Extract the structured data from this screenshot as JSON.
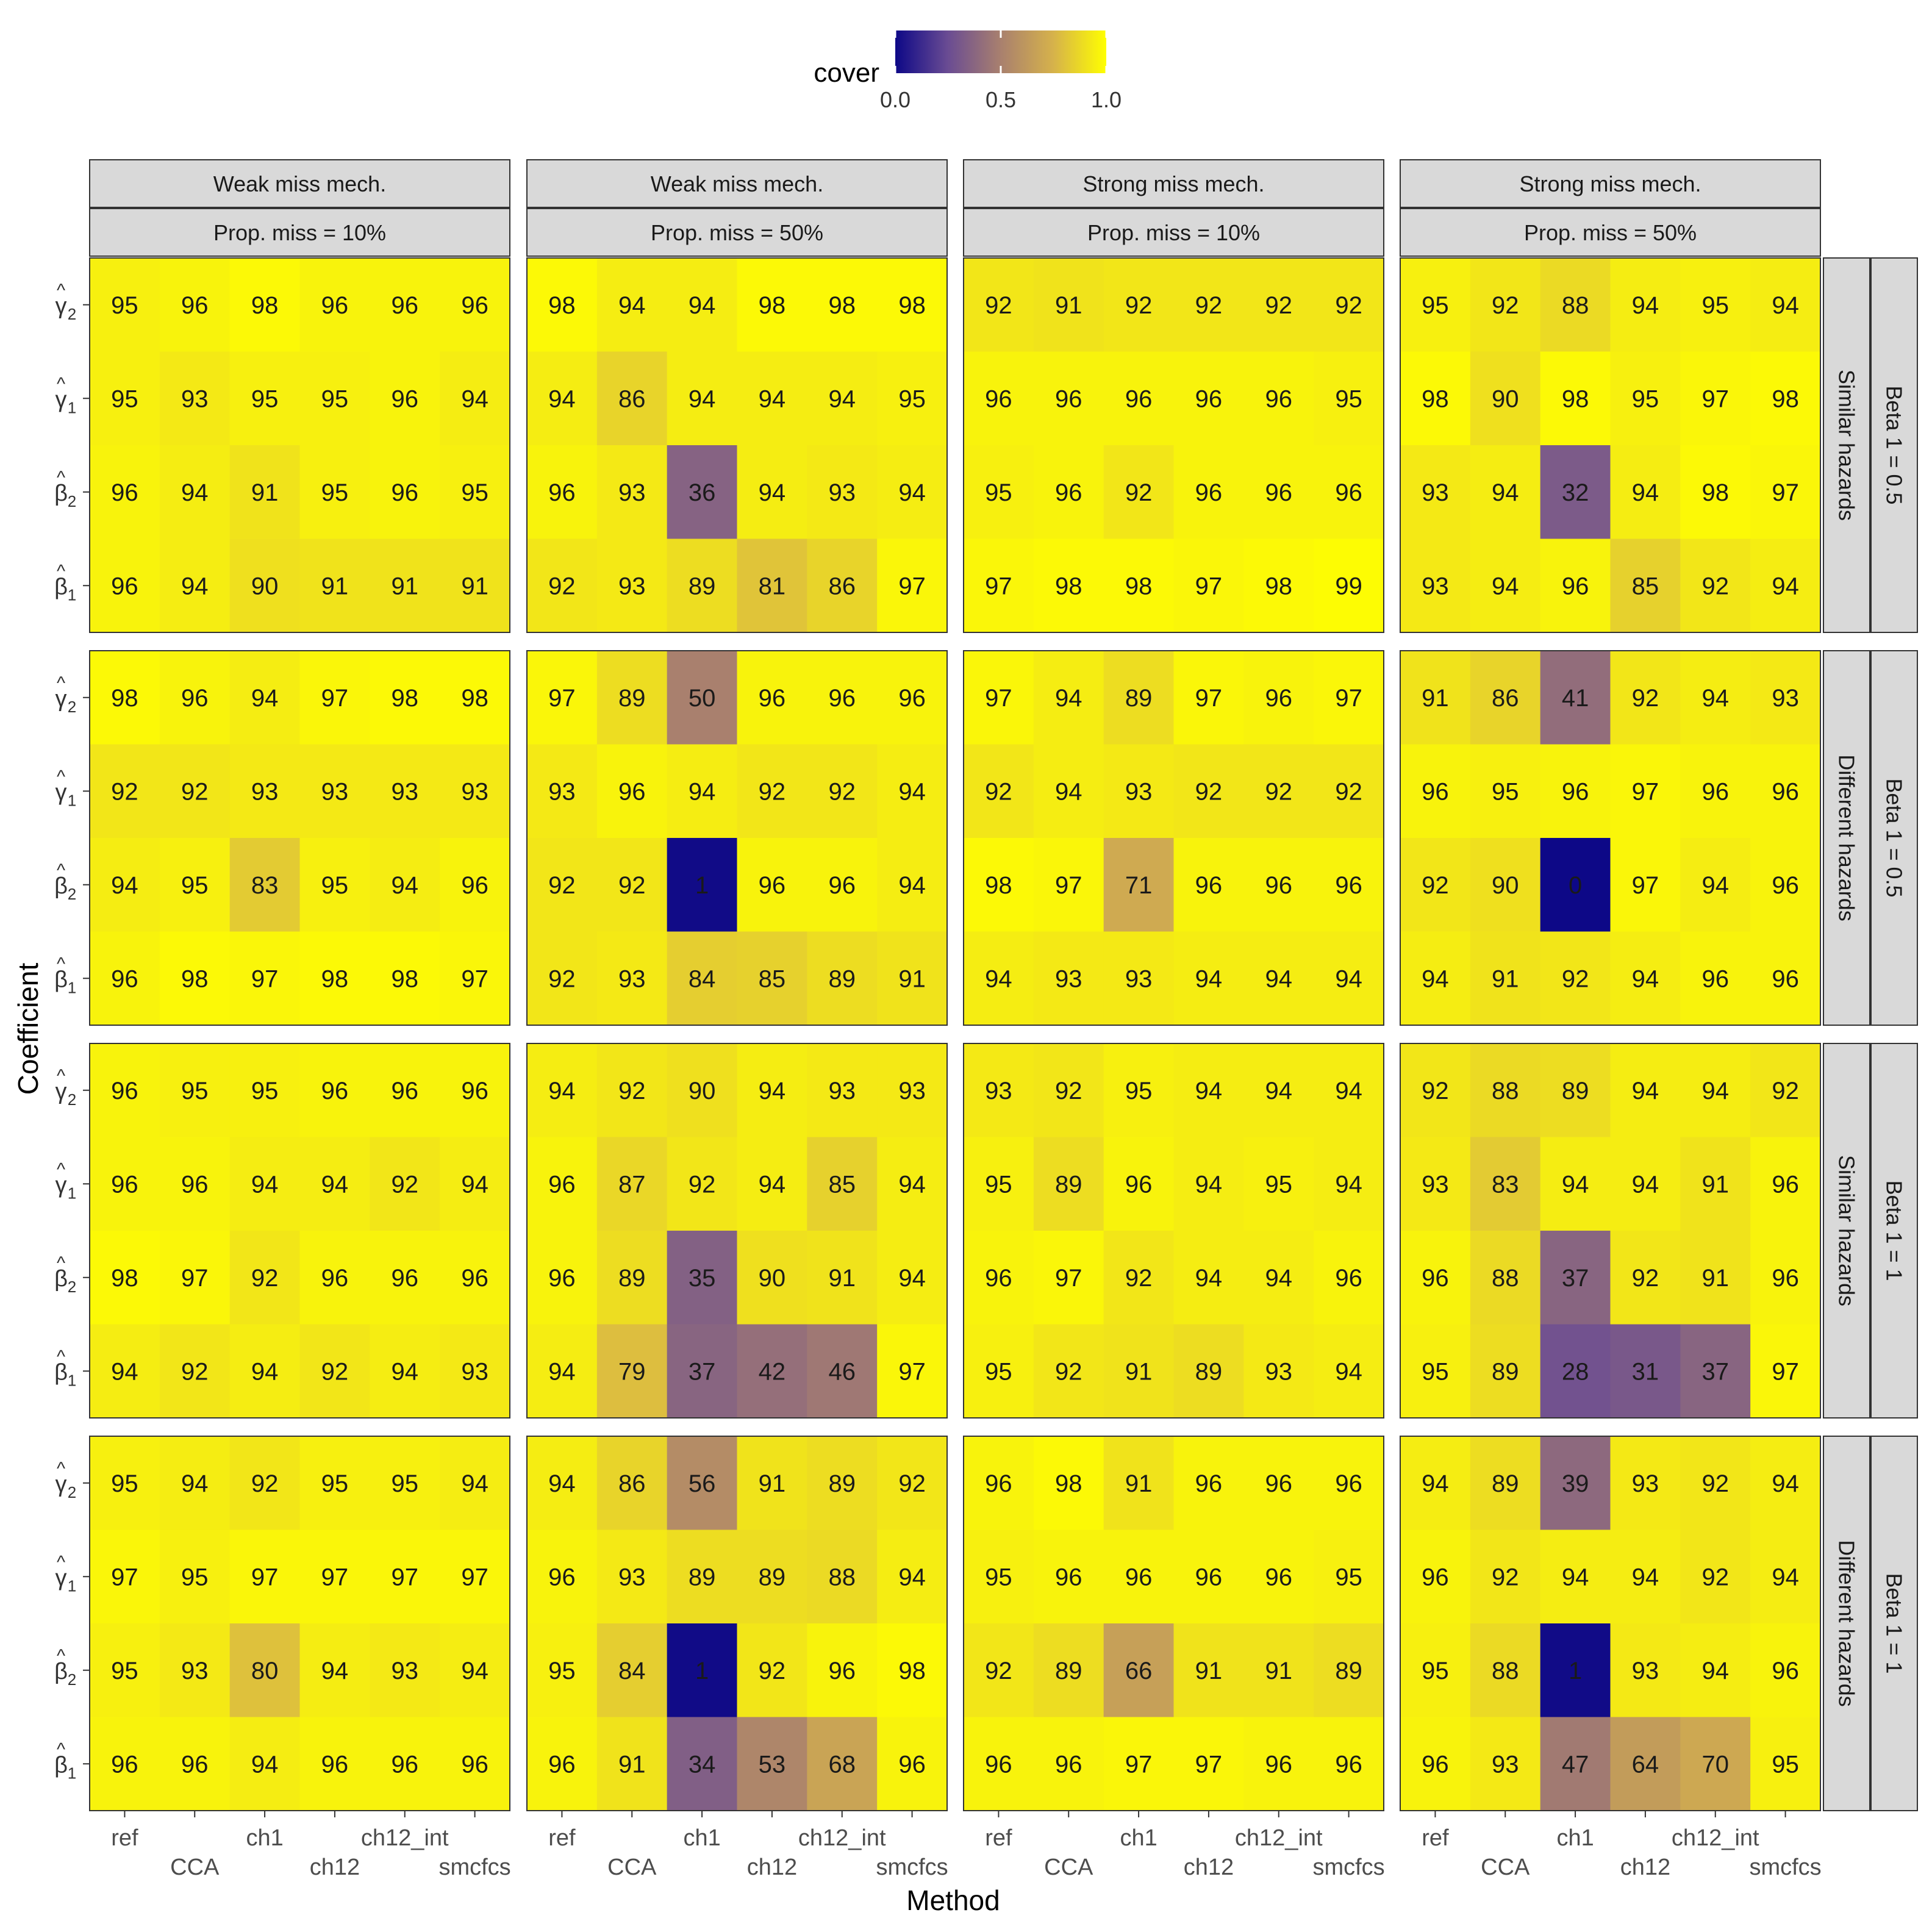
{
  "chart_data": {
    "type": "heatmap",
    "title": "",
    "xlabel": "Method",
    "ylabel": "Coefficient",
    "legend": {
      "title": "cover",
      "position": "top",
      "ticks": [
        "0.0",
        "0.5",
        "1.0"
      ],
      "range": [
        0,
        1
      ],
      "colors": [
        "#0D0887",
        "#6A4C93",
        "#A9806E",
        "#D6B24B",
        "#FFFF00"
      ]
    },
    "methods": [
      "ref",
      "CCA",
      "ch1",
      "ch12",
      "ch12_int",
      "smcfcs"
    ],
    "coefficients": [
      {
        "sym": "γ",
        "sub": "2",
        "hat": "^"
      },
      {
        "sym": "γ",
        "sub": "1",
        "hat": "^"
      },
      {
        "sym": "β",
        "sub": "2",
        "hat": "^"
      },
      {
        "sym": "β",
        "sub": "1",
        "hat": "^"
      }
    ],
    "column_strips": [
      {
        "mech": "Weak miss mech.",
        "prop": "Prop. miss = 10%"
      },
      {
        "mech": "Weak miss mech.",
        "prop": "Prop. miss = 50%"
      },
      {
        "mech": "Strong miss mech.",
        "prop": "Prop. miss = 10%"
      },
      {
        "mech": "Strong miss mech.",
        "prop": "Prop. miss = 50%"
      }
    ],
    "row_strips": [
      {
        "hazards": "Similar hazards",
        "beta": "Beta 1 = 0.5"
      },
      {
        "hazards": "Different hazards",
        "beta": "Beta 1 = 0.5"
      },
      {
        "hazards": "Similar hazards",
        "beta": "Beta 1 = 1"
      },
      {
        "hazards": "Different hazards",
        "beta": "Beta 1 = 1"
      }
    ],
    "panels": [
      [
        [
          [
            95,
            96,
            98,
            96,
            96,
            96
          ],
          [
            95,
            93,
            95,
            95,
            96,
            94
          ],
          [
            96,
            94,
            91,
            95,
            96,
            95
          ],
          [
            96,
            94,
            90,
            91,
            91,
            91
          ]
        ],
        [
          [
            98,
            94,
            94,
            98,
            98,
            98
          ],
          [
            94,
            86,
            94,
            94,
            94,
            95
          ],
          [
            96,
            93,
            36,
            94,
            93,
            94
          ],
          [
            92,
            93,
            89,
            81,
            86,
            97
          ]
        ],
        [
          [
            92,
            91,
            92,
            92,
            92,
            92
          ],
          [
            96,
            96,
            96,
            96,
            96,
            95
          ],
          [
            95,
            96,
            92,
            96,
            96,
            96
          ],
          [
            97,
            98,
            98,
            97,
            98,
            99
          ]
        ],
        [
          [
            95,
            92,
            88,
            94,
            95,
            94
          ],
          [
            98,
            90,
            98,
            95,
            97,
            98
          ],
          [
            93,
            94,
            32,
            94,
            98,
            97
          ],
          [
            93,
            94,
            96,
            85,
            92,
            94
          ]
        ]
      ],
      [
        [
          [
            98,
            96,
            94,
            97,
            98,
            98
          ],
          [
            92,
            92,
            93,
            93,
            93,
            93
          ],
          [
            94,
            95,
            83,
            95,
            94,
            96
          ],
          [
            96,
            98,
            97,
            98,
            98,
            97
          ]
        ],
        [
          [
            97,
            89,
            50,
            96,
            96,
            96
          ],
          [
            93,
            96,
            94,
            92,
            92,
            94
          ],
          [
            92,
            92,
            1,
            96,
            96,
            94
          ],
          [
            92,
            93,
            84,
            85,
            89,
            91
          ]
        ],
        [
          [
            97,
            94,
            89,
            97,
            96,
            97
          ],
          [
            92,
            94,
            93,
            92,
            92,
            92
          ],
          [
            98,
            97,
            71,
            96,
            96,
            96
          ],
          [
            94,
            93,
            93,
            94,
            94,
            94
          ]
        ],
        [
          [
            91,
            86,
            41,
            92,
            94,
            93
          ],
          [
            96,
            95,
            96,
            97,
            96,
            96
          ],
          [
            92,
            90,
            0,
            97,
            94,
            96
          ],
          [
            94,
            91,
            92,
            94,
            96,
            96
          ]
        ]
      ],
      [
        [
          [
            96,
            95,
            95,
            96,
            96,
            96
          ],
          [
            96,
            96,
            94,
            94,
            92,
            94
          ],
          [
            98,
            97,
            92,
            96,
            96,
            96
          ],
          [
            94,
            92,
            94,
            92,
            94,
            93
          ]
        ],
        [
          [
            94,
            92,
            90,
            94,
            93,
            93
          ],
          [
            96,
            87,
            92,
            94,
            85,
            94
          ],
          [
            96,
            89,
            35,
            90,
            91,
            94
          ],
          [
            94,
            79,
            37,
            42,
            46,
            97
          ]
        ],
        [
          [
            93,
            92,
            95,
            94,
            94,
            94
          ],
          [
            95,
            89,
            96,
            94,
            95,
            94
          ],
          [
            96,
            97,
            92,
            94,
            94,
            96
          ],
          [
            95,
            92,
            91,
            89,
            93,
            94
          ]
        ],
        [
          [
            92,
            88,
            89,
            94,
            94,
            92
          ],
          [
            93,
            83,
            94,
            94,
            91,
            96
          ],
          [
            96,
            88,
            37,
            92,
            91,
            96
          ],
          [
            95,
            89,
            28,
            31,
            37,
            97
          ]
        ]
      ],
      [
        [
          [
            95,
            94,
            92,
            95,
            95,
            94
          ],
          [
            97,
            95,
            97,
            97,
            97,
            97
          ],
          [
            95,
            93,
            80,
            94,
            93,
            94
          ],
          [
            96,
            96,
            94,
            96,
            96,
            96
          ]
        ],
        [
          [
            94,
            86,
            56,
            91,
            89,
            92
          ],
          [
            96,
            93,
            89,
            89,
            88,
            94
          ],
          [
            95,
            84,
            1,
            92,
            96,
            98
          ],
          [
            96,
            91,
            34,
            53,
            68,
            96
          ]
        ],
        [
          [
            96,
            98,
            91,
            96,
            96,
            96
          ],
          [
            95,
            96,
            96,
            96,
            96,
            95
          ],
          [
            92,
            89,
            66,
            91,
            91,
            89
          ],
          [
            96,
            96,
            97,
            97,
            96,
            96
          ]
        ],
        [
          [
            94,
            89,
            39,
            93,
            92,
            94
          ],
          [
            96,
            92,
            94,
            94,
            92,
            94
          ],
          [
            95,
            88,
            1,
            93,
            94,
            96
          ],
          [
            96,
            93,
            47,
            64,
            70,
            95
          ]
        ]
      ]
    ]
  }
}
